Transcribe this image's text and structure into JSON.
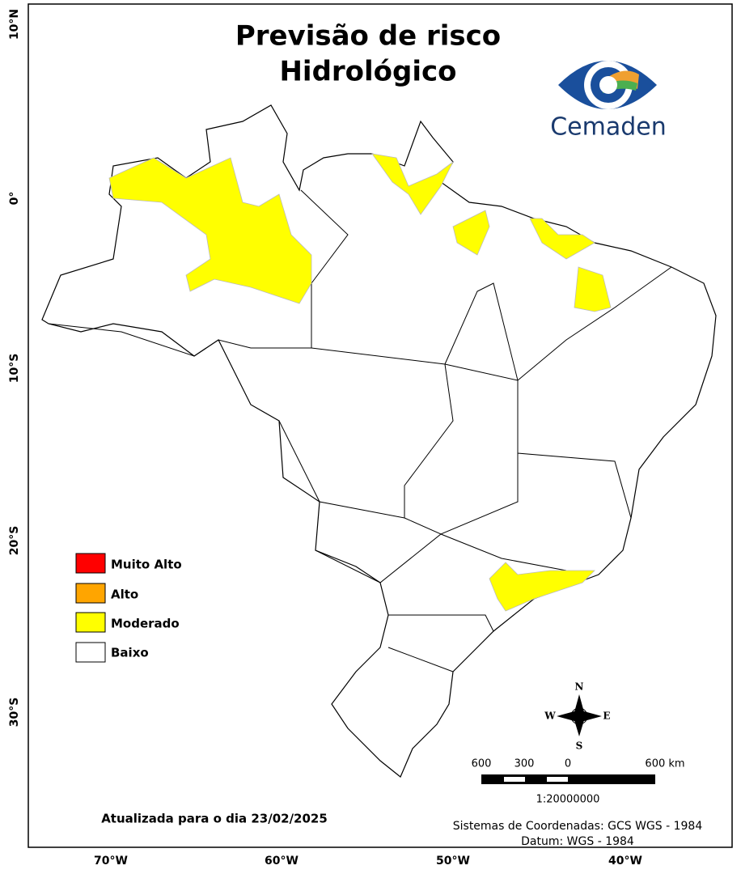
{
  "header": {
    "title_line1": "Previsão de risco",
    "title_line2": "Hidrológico",
    "logo_text": "Cemaden"
  },
  "axes": {
    "lat_labels": [
      "10°N",
      "0°",
      "10°S",
      "20°S",
      "30°S"
    ],
    "lon_labels": [
      "70°W",
      "60°W",
      "50°W",
      "40°W"
    ]
  },
  "legend": {
    "items": [
      "Muito Alto",
      "Alto",
      "Moderado",
      "Baixo"
    ]
  },
  "compass": {
    "n": "N",
    "s": "S",
    "e": "E",
    "w": "W"
  },
  "scale_bar": {
    "labels": [
      "600",
      "300",
      "0",
      "600 km"
    ],
    "ratio": "1:20000000"
  },
  "footer": {
    "date": "Atualizada para o dia 23/02/2025",
    "crs": "Sistemas de Coordenadas: GCS WGS - 1984",
    "datum": "Datum: WGS - 1984"
  }
}
